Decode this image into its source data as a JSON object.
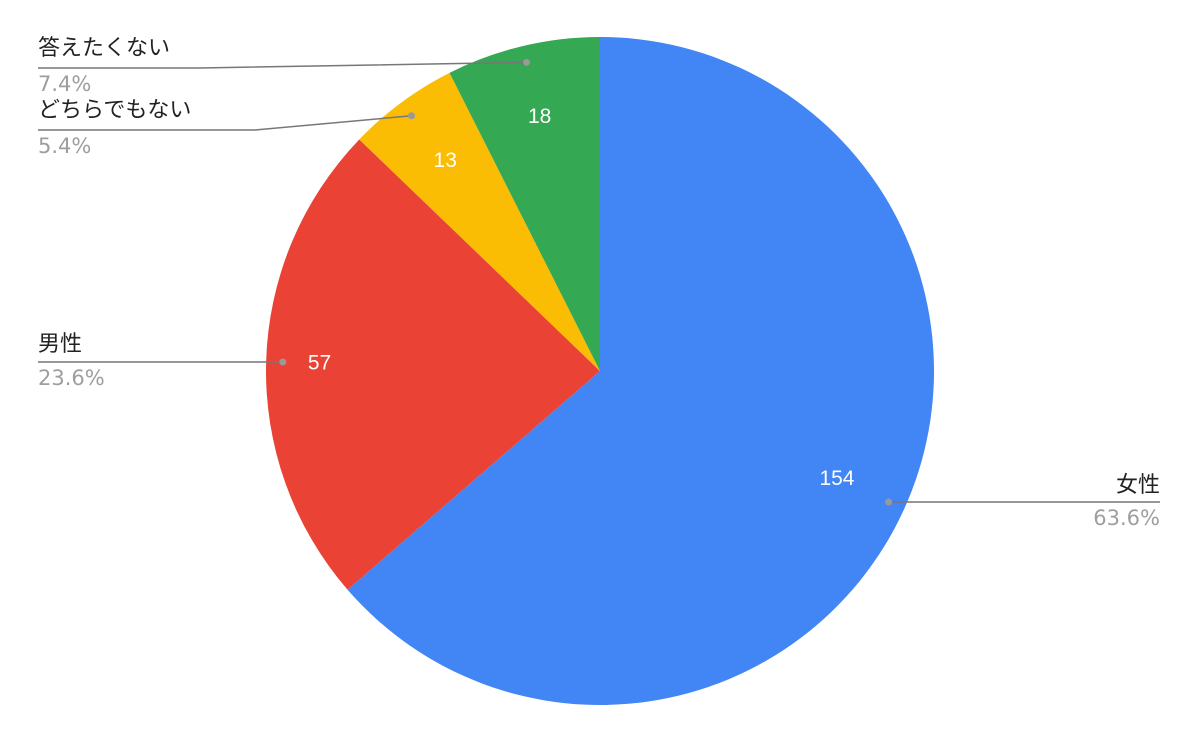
{
  "chart_data": {
    "type": "pie",
    "categories": [
      "女性",
      "男性",
      "どちらでもない",
      "答えたくない"
    ],
    "values": [
      154,
      57,
      13,
      18
    ],
    "percent_labels": [
      "63.6%",
      "23.6%",
      "5.4%",
      "7.4%"
    ],
    "colors": [
      "#4285f4",
      "#ea4335",
      "#fbbc04",
      "#34a853"
    ]
  }
}
